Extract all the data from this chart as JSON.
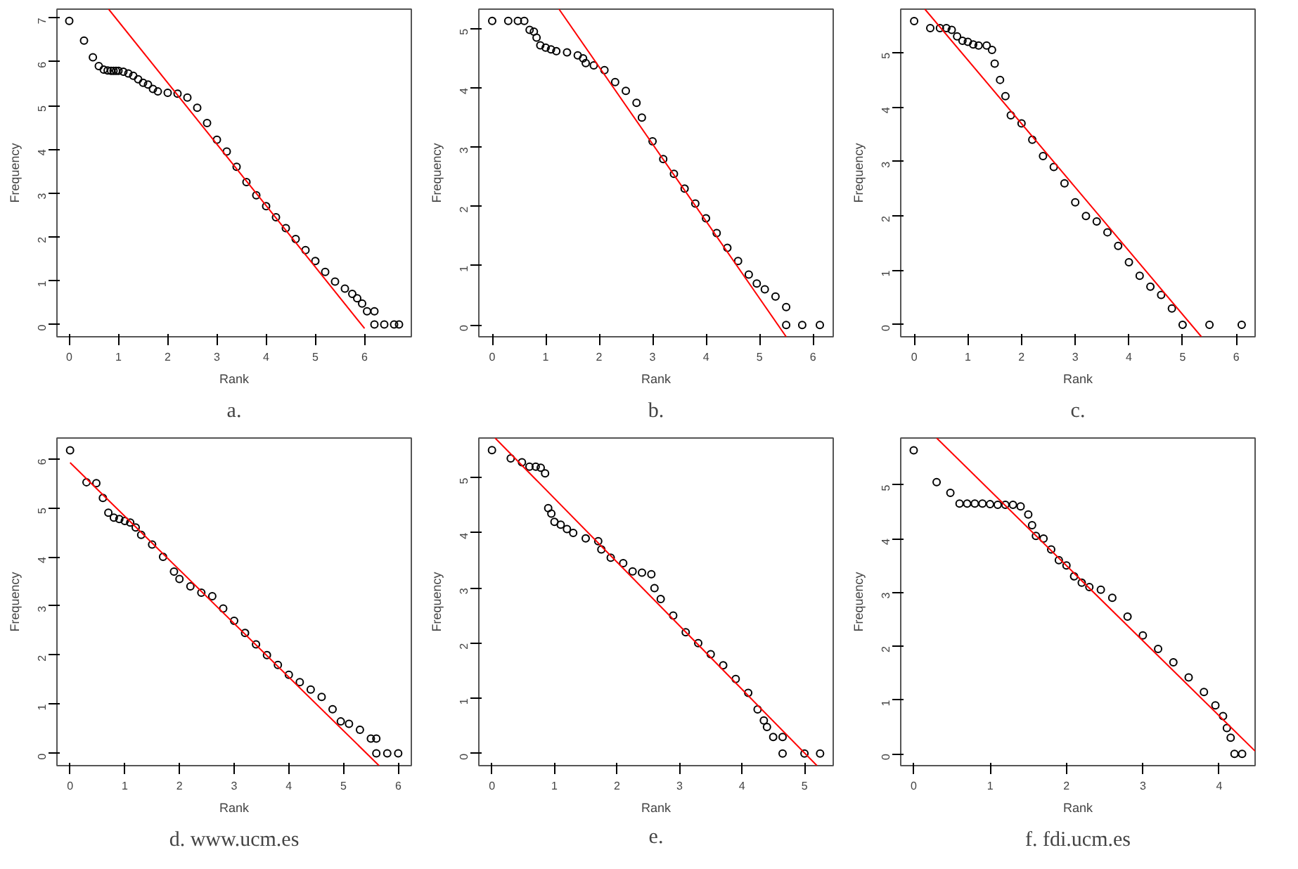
{
  "chart_data": [
    {
      "type": "scatter",
      "title": "a.",
      "xlabel": "Rank",
      "ylabel": "Frequency",
      "xlim": [
        -0.25,
        6.95
      ],
      "ylim": [
        -0.28,
        7.2
      ],
      "xticks": [
        0,
        1,
        2,
        3,
        4,
        5,
        6
      ],
      "yticks": [
        0,
        1,
        2,
        3,
        4,
        5,
        6,
        7
      ],
      "marker": "circle",
      "series": [
        {
          "color": "#000000",
          "x": [
            0,
            0.3,
            0.48,
            0.6,
            0.7,
            0.78,
            0.85,
            0.9,
            0.95,
            1.0,
            1.1,
            1.2,
            1.3,
            1.4,
            1.5,
            1.6,
            1.7,
            1.8,
            2.0,
            2.2,
            2.4,
            2.6,
            2.8,
            3.0,
            3.2,
            3.4,
            3.6,
            3.8,
            4.0,
            4.2,
            4.4,
            4.6,
            4.8,
            5.0,
            5.2,
            5.4,
            5.6,
            5.75,
            5.85,
            5.95,
            6.05,
            6.2,
            6.2,
            6.4,
            6.6,
            6.7
          ],
          "values": [
            6.93,
            6.48,
            6.1,
            5.9,
            5.82,
            5.8,
            5.79,
            5.79,
            5.79,
            5.79,
            5.77,
            5.73,
            5.68,
            5.6,
            5.52,
            5.48,
            5.38,
            5.32,
            5.29,
            5.27,
            5.18,
            4.95,
            4.6,
            4.22,
            3.95,
            3.6,
            3.25,
            2.95,
            2.7,
            2.45,
            2.2,
            1.95,
            1.7,
            1.45,
            1.2,
            0.98,
            0.82,
            0.7,
            0.6,
            0.48,
            0.3,
            0.3,
            0,
            0,
            0,
            0
          ]
        },
        {
          "type": "line",
          "marker": "none",
          "color": "#ff0000",
          "x": [
            0.8,
            6.0
          ],
          "values": [
            7.2,
            -0.09
          ]
        }
      ]
    },
    {
      "type": "scatter",
      "title": "b.",
      "xlabel": "Rank",
      "ylabel": "Frequency",
      "xlim": [
        -0.25,
        6.38
      ],
      "ylim": [
        -0.2,
        5.33
      ],
      "xticks": [
        0,
        1,
        2,
        3,
        4,
        5,
        6
      ],
      "yticks": [
        0,
        1,
        2,
        3,
        4,
        5
      ],
      "marker": "circle",
      "series": [
        {
          "color": "#000000",
          "x": [
            0,
            0.3,
            0.48,
            0.6,
            0.7,
            0.78,
            0.83,
            0.9,
            1.0,
            1.1,
            1.2,
            1.4,
            1.6,
            1.7,
            1.75,
            1.9,
            2.1,
            2.3,
            2.5,
            2.7,
            2.8,
            3.0,
            3.2,
            3.4,
            3.6,
            3.8,
            4.0,
            4.2,
            4.4,
            4.6,
            4.8,
            4.95,
            5.1,
            5.3,
            5.5,
            5.5,
            5.8,
            6.13
          ],
          "values": [
            5.13,
            5.13,
            5.13,
            5.13,
            4.98,
            4.95,
            4.85,
            4.72,
            4.68,
            4.65,
            4.62,
            4.6,
            4.55,
            4.5,
            4.42,
            4.38,
            4.3,
            4.1,
            3.95,
            3.75,
            3.5,
            3.1,
            2.8,
            2.55,
            2.3,
            2.05,
            1.8,
            1.55,
            1.3,
            1.08,
            0.85,
            0.7,
            0.6,
            0.48,
            0.3,
            0,
            0,
            0
          ]
        },
        {
          "type": "line",
          "marker": "none",
          "color": "#ff0000",
          "x": [
            1.25,
            5.5
          ],
          "values": [
            5.33,
            -0.2
          ]
        }
      ]
    },
    {
      "type": "scatter",
      "title": "c.",
      "xlabel": "Rank",
      "ylabel": "Frequency",
      "xlim": [
        -0.25,
        6.35
      ],
      "ylim": [
        -0.22,
        5.8
      ],
      "xticks": [
        0,
        1,
        2,
        3,
        4,
        5,
        6
      ],
      "yticks": [
        0,
        1,
        2,
        3,
        4,
        5
      ],
      "marker": "circle",
      "series": [
        {
          "color": "#000000",
          "x": [
            0,
            0.3,
            0.48,
            0.6,
            0.7,
            0.8,
            0.9,
            1.0,
            1.1,
            1.2,
            1.35,
            1.45,
            1.5,
            1.6,
            1.7,
            1.8,
            2.0,
            2.2,
            2.4,
            2.6,
            2.8,
            3.0,
            3.2,
            3.4,
            3.6,
            3.8,
            4.0,
            4.2,
            4.4,
            4.6,
            4.8,
            5.0,
            5.5,
            6.1
          ],
          "values": [
            5.58,
            5.45,
            5.45,
            5.45,
            5.42,
            5.3,
            5.22,
            5.2,
            5.15,
            5.13,
            5.13,
            5.05,
            4.8,
            4.5,
            4.2,
            3.85,
            3.7,
            3.4,
            3.1,
            2.9,
            2.6,
            2.25,
            2.0,
            1.9,
            1.7,
            1.45,
            1.15,
            0.9,
            0.7,
            0.55,
            0.3,
            0,
            0,
            0
          ]
        },
        {
          "type": "line",
          "marker": "none",
          "color": "#ff0000",
          "x": [
            0.2,
            5.35
          ],
          "values": [
            5.8,
            -0.22
          ]
        }
      ]
    },
    {
      "type": "scatter",
      "title": "d. www.ucm.es",
      "xlabel": "Rank",
      "ylabel": "Frequency",
      "xlim": [
        -0.24,
        6.24
      ],
      "ylim": [
        -0.25,
        6.42
      ],
      "xticks": [
        0,
        1,
        2,
        3,
        4,
        5,
        6
      ],
      "yticks": [
        0,
        1,
        2,
        3,
        4,
        5,
        6
      ],
      "marker": "circle",
      "series": [
        {
          "color": "#000000",
          "x": [
            0,
            0.3,
            0.48,
            0.6,
            0.7,
            0.8,
            0.9,
            1.0,
            1.1,
            1.2,
            1.3,
            1.5,
            1.7,
            1.9,
            2.0,
            2.2,
            2.4,
            2.6,
            2.8,
            3.0,
            3.2,
            3.4,
            3.6,
            3.8,
            4.0,
            4.2,
            4.4,
            4.6,
            4.8,
            4.95,
            5.1,
            5.3,
            5.5,
            5.6,
            5.6,
            5.8,
            6.0
          ],
          "values": [
            6.17,
            5.52,
            5.5,
            5.2,
            4.9,
            4.8,
            4.77,
            4.73,
            4.7,
            4.6,
            4.45,
            4.25,
            4.0,
            3.7,
            3.55,
            3.4,
            3.27,
            3.2,
            2.95,
            2.7,
            2.45,
            2.22,
            2.0,
            1.8,
            1.6,
            1.45,
            1.3,
            1.15,
            0.9,
            0.65,
            0.6,
            0.48,
            0.3,
            0.3,
            0,
            0,
            0
          ]
        },
        {
          "type": "line",
          "marker": "none",
          "color": "#ff0000",
          "x": [
            0,
            5.65
          ],
          "values": [
            5.92,
            -0.25
          ]
        }
      ]
    },
    {
      "type": "scatter",
      "title": "e.",
      "xlabel": "Rank",
      "ylabel": "Frequency",
      "xlim": [
        -0.21,
        5.46
      ],
      "ylim": [
        -0.22,
        5.72
      ],
      "xticks": [
        0,
        1,
        2,
        3,
        4,
        5
      ],
      "yticks": [
        0,
        1,
        2,
        3,
        4,
        5
      ],
      "marker": "circle",
      "series": [
        {
          "color": "#000000",
          "x": [
            0,
            0.3,
            0.48,
            0.6,
            0.7,
            0.78,
            0.85,
            0.9,
            0.95,
            1.0,
            1.1,
            1.2,
            1.3,
            1.5,
            1.7,
            1.75,
            1.9,
            2.1,
            2.25,
            2.4,
            2.55,
            2.6,
            2.7,
            2.9,
            3.1,
            3.3,
            3.5,
            3.7,
            3.9,
            4.1,
            4.25,
            4.35,
            4.4,
            4.5,
            4.65,
            4.65,
            5.0,
            5.25
          ],
          "values": [
            5.5,
            5.35,
            5.28,
            5.2,
            5.2,
            5.18,
            5.08,
            4.45,
            4.35,
            4.2,
            4.15,
            4.07,
            4.0,
            3.9,
            3.85,
            3.7,
            3.55,
            3.45,
            3.3,
            3.28,
            3.25,
            3.0,
            2.8,
            2.5,
            2.2,
            2.0,
            1.8,
            1.6,
            1.35,
            1.1,
            0.8,
            0.6,
            0.48,
            0.3,
            0.3,
            0,
            0,
            0
          ]
        },
        {
          "type": "line",
          "marker": "none",
          "color": "#ff0000",
          "x": [
            0.05,
            5.2
          ],
          "values": [
            5.72,
            -0.22
          ]
        }
      ]
    },
    {
      "type": "scatter",
      "title": "f. fdi.ucm.es",
      "xlabel": "Rank",
      "ylabel": "Frequency",
      "xlim": [
        -0.17,
        4.47
      ],
      "ylim": [
        -0.22,
        5.87
      ],
      "xticks": [
        0,
        1,
        2,
        3,
        4
      ],
      "yticks": [
        0,
        1,
        2,
        3,
        4,
        5
      ],
      "marker": "circle",
      "series": [
        {
          "color": "#000000",
          "x": [
            0,
            0.3,
            0.48,
            0.6,
            0.7,
            0.8,
            0.9,
            1.0,
            1.1,
            1.2,
            1.3,
            1.4,
            1.5,
            1.55,
            1.6,
            1.7,
            1.8,
            1.9,
            2.0,
            2.1,
            2.2,
            2.3,
            2.45,
            2.6,
            2.8,
            3.0,
            3.2,
            3.4,
            3.6,
            3.8,
            3.95,
            4.05,
            4.1,
            4.15,
            4.2,
            4.3
          ],
          "values": [
            5.64,
            5.05,
            4.85,
            4.65,
            4.65,
            4.65,
            4.65,
            4.64,
            4.63,
            4.63,
            4.63,
            4.6,
            4.45,
            4.25,
            4.05,
            4.0,
            3.8,
            3.6,
            3.5,
            3.3,
            3.18,
            3.1,
            3.05,
            2.9,
            2.55,
            2.2,
            1.95,
            1.7,
            1.42,
            1.15,
            0.9,
            0.7,
            0.48,
            0.3,
            0,
            0
          ]
        },
        {
          "type": "line",
          "marker": "none",
          "color": "#ff0000",
          "x": [
            0.3,
            4.47
          ],
          "values": [
            5.87,
            0.05
          ]
        }
      ]
    }
  ]
}
